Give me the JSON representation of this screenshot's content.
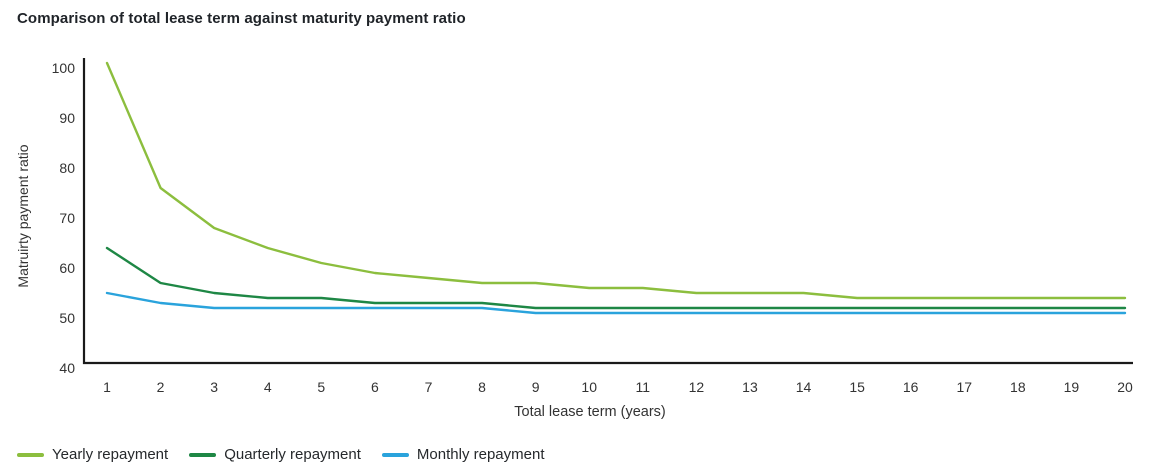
{
  "title": "Comparison of total lease term against maturity payment ratio",
  "chart_data": {
    "type": "line",
    "title": "Comparison of total lease term against maturity payment ratio",
    "x": [
      1,
      2,
      3,
      4,
      5,
      6,
      7,
      8,
      9,
      10,
      11,
      12,
      13,
      14,
      15,
      16,
      17,
      18,
      19,
      20
    ],
    "series": [
      {
        "name": "Yearly repayment",
        "color": "#8cbe3e",
        "values": [
          101,
          76,
          68,
          64,
          61,
          59,
          58,
          57,
          57,
          56,
          56,
          55,
          55,
          55,
          54,
          54,
          54,
          54,
          54,
          54
        ]
      },
      {
        "name": "Quarterly repayment",
        "color": "#1e8745",
        "values": [
          64,
          57,
          55,
          54,
          54,
          53,
          53,
          53,
          52,
          52,
          52,
          52,
          52,
          52,
          52,
          52,
          52,
          52,
          52,
          52
        ]
      },
      {
        "name": "Monthly repayment",
        "color": "#2aa3dc",
        "values": [
          55,
          53,
          52,
          52,
          52,
          52,
          52,
          52,
          51,
          51,
          51,
          51,
          51,
          51,
          51,
          51,
          51,
          51,
          51,
          51
        ]
      }
    ],
    "xlabel": "Total lease term (years)",
    "ylabel": "Matruirty payment ratio",
    "ylim": [
      40,
      100
    ],
    "yticks": [
      40,
      50,
      60,
      70,
      80,
      90,
      100
    ],
    "grid": false,
    "legend_position": "bottom"
  },
  "colors": {
    "axis_line": "#1a1a1a",
    "axis_text": "#333333",
    "title_text": "#1f2328"
  }
}
